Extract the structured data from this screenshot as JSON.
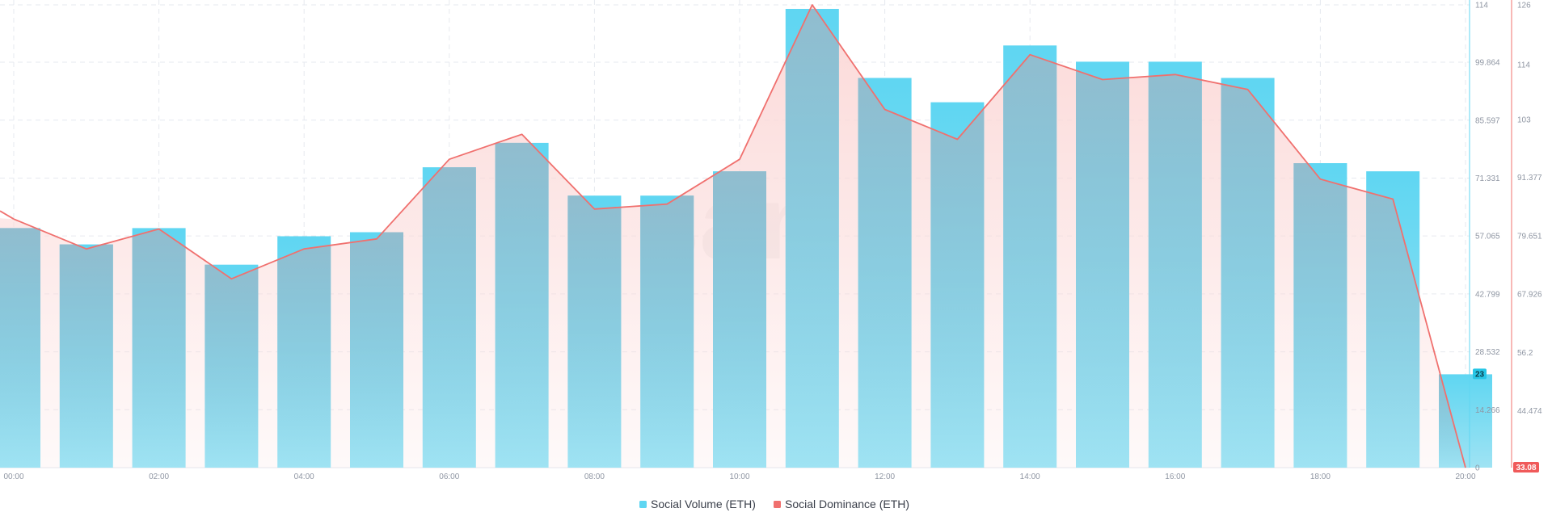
{
  "colors": {
    "volume": "#5fd6f2",
    "volume_light": "#9fe3f3",
    "volume_overlay": "#9ab8c8",
    "dominance": "#f0706e",
    "dominance_fill": "#fbd9d8",
    "grid": "#e6e9ef",
    "badge_volume": "#26c6e6",
    "badge_dominance": "#f05a5a",
    "watermark": "#f0f0f0"
  },
  "watermark": "san",
  "legend": [
    {
      "label": "Social Volume (ETH)",
      "color": "#5fd6f2"
    },
    {
      "label": "Social Dominance (ETH)",
      "color": "#f0706e"
    }
  ],
  "badges": {
    "volume": "23",
    "dominance": "33.08"
  },
  "chart_data": {
    "type": "bar",
    "x_start_hour": 0,
    "x_tick_labels": [
      "00:00",
      "02:00",
      "04:00",
      "06:00",
      "08:00",
      "10:00",
      "12:00",
      "14:00",
      "16:00",
      "18:00",
      "20:00"
    ],
    "left_axis": {
      "ylim": [
        0,
        114
      ],
      "ticks": [
        "0",
        "14.266",
        "28.532",
        "42.799",
        "57.065",
        "71.331",
        "85.597",
        "99.864",
        "114"
      ]
    },
    "right_axis": {
      "ylim": [
        33.08,
        126
      ],
      "ticks": [
        "44.474",
        "56.2",
        "67.926",
        "79.651",
        "91.377",
        "103",
        "114",
        "126"
      ]
    },
    "series": [
      {
        "name": "Social Volume (ETH)",
        "type": "bar",
        "axis": "left",
        "values": [
          59,
          55,
          59,
          50,
          57,
          58,
          74,
          80,
          67,
          67,
          73,
          113,
          96,
          90,
          104,
          100,
          100,
          96,
          75,
          73,
          23
        ]
      },
      {
        "name": "Social Dominance (ETH)",
        "type": "area-line",
        "axis": "right",
        "values": [
          83,
          77,
          81,
          71,
          77,
          79,
          95,
          100,
          85,
          86,
          95,
          126,
          105,
          99,
          116,
          111,
          112,
          109,
          91,
          87,
          33.08
        ]
      }
    ]
  }
}
